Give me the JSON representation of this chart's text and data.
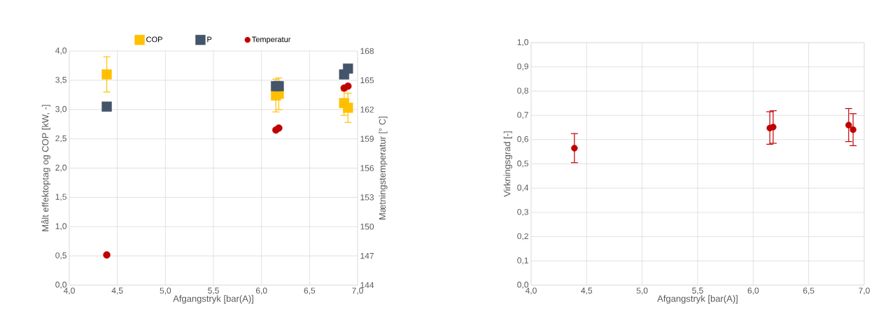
{
  "chart_data": [
    {
      "type": "scatter",
      "xlabel": "Afgangstryk [bar(A)]",
      "ylabel": "Målt effektoptag og COP [kW, -]",
      "y2label": "Mætningstemperatur [° C]",
      "xlim": [
        4.0,
        7.0
      ],
      "xticks": [
        {
          "value": 4.0,
          "label": "4,0"
        },
        {
          "value": 4.5,
          "label": "4,5"
        },
        {
          "value": 5.0,
          "label": "5,0"
        },
        {
          "value": 5.5,
          "label": "5,5"
        },
        {
          "value": 6.0,
          "label": "6,0"
        },
        {
          "value": 6.5,
          "label": "6,5"
        },
        {
          "value": 7.0,
          "label": "7,0"
        }
      ],
      "ylim": [
        0.0,
        4.0
      ],
      "yticks": [
        {
          "value": 0.0,
          "label": "0,0"
        },
        {
          "value": 0.5,
          "label": "0,5"
        },
        {
          "value": 1.0,
          "label": "1,0"
        },
        {
          "value": 1.5,
          "label": "1,5"
        },
        {
          "value": 2.0,
          "label": "2,0"
        },
        {
          "value": 2.5,
          "label": "2,5"
        },
        {
          "value": 3.0,
          "label": "3,0"
        },
        {
          "value": 3.5,
          "label": "3,5"
        },
        {
          "value": 4.0,
          "label": "4,0"
        }
      ],
      "y2lim": [
        144,
        168
      ],
      "y2ticks": [
        144,
        147,
        150,
        153,
        156,
        159,
        162,
        165,
        168
      ],
      "grid": true,
      "legend": "top",
      "series": [
        {
          "name": "COP",
          "color": "#ffc000",
          "marker": "square",
          "x": [
            4.39,
            6.15,
            6.18,
            6.86,
            6.9
          ],
          "values": [
            3.6,
            3.24,
            3.27,
            3.11,
            3.03
          ],
          "errors": [
            0.3,
            0.28,
            0.27,
            0.21,
            0.25
          ]
        },
        {
          "name": "P",
          "color": "#44546a",
          "marker": "square",
          "x": [
            4.39,
            6.15,
            6.18,
            6.86,
            6.9
          ],
          "values": [
            3.05,
            3.4,
            3.4,
            3.6,
            3.7
          ]
        },
        {
          "name": "Temperatur",
          "color": "#c00000",
          "marker": "circle",
          "axis": "y2",
          "x": [
            4.39,
            6.15,
            6.18,
            6.86,
            6.9
          ],
          "values": [
            147.1,
            159.9,
            160.1,
            164.2,
            164.4
          ]
        }
      ]
    },
    {
      "type": "scatter",
      "xlabel": "Afgangstryk [bar(A)]",
      "ylabel": "Virkningsgrad [-]",
      "xlim": [
        4.0,
        7.0
      ],
      "xticks": [
        {
          "value": 4.0,
          "label": "4,0"
        },
        {
          "value": 4.5,
          "label": "4,5"
        },
        {
          "value": 5.0,
          "label": "5,0"
        },
        {
          "value": 5.5,
          "label": "5,5"
        },
        {
          "value": 6.0,
          "label": "6,0"
        },
        {
          "value": 6.5,
          "label": "6,5"
        },
        {
          "value": 7.0,
          "label": "7,0"
        }
      ],
      "ylim": [
        0.0,
        1.0
      ],
      "yticks": [
        {
          "value": 0.0,
          "label": "0,0"
        },
        {
          "value": 0.1,
          "label": "0,1"
        },
        {
          "value": 0.2,
          "label": "0,2"
        },
        {
          "value": 0.3,
          "label": "0,3"
        },
        {
          "value": 0.4,
          "label": "0,4"
        },
        {
          "value": 0.5,
          "label": "0,5"
        },
        {
          "value": 0.6,
          "label": "0,6"
        },
        {
          "value": 0.7,
          "label": "0,7"
        },
        {
          "value": 0.8,
          "label": "0,8"
        },
        {
          "value": 0.9,
          "label": "0,9"
        },
        {
          "value": 1.0,
          "label": "1,0"
        }
      ],
      "grid": true,
      "series": [
        {
          "color": "#c00000",
          "marker": "circle",
          "x": [
            4.39,
            6.15,
            6.18,
            6.86,
            6.9
          ],
          "values": [
            0.565,
            0.648,
            0.652,
            0.66,
            0.641
          ],
          "errors": [
            0.06,
            0.067,
            0.067,
            0.068,
            0.066
          ]
        }
      ]
    }
  ]
}
